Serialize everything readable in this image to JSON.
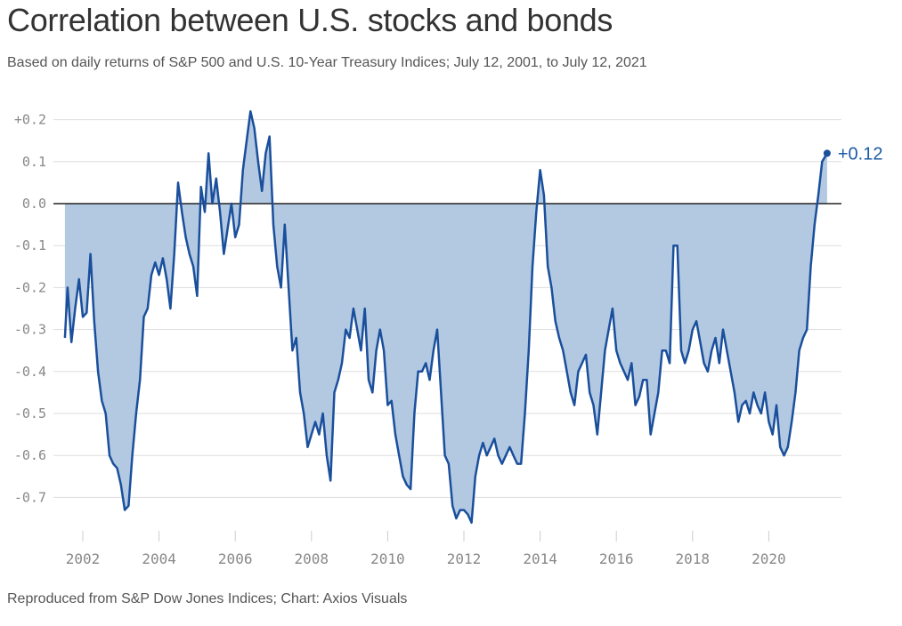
{
  "header": {
    "title": "Correlation between U.S. stocks and bonds",
    "subtitle": "Based on daily returns of S&P 500 and U.S. 10-Year Treasury Indices; July 12, 2001, to July 12, 2021"
  },
  "footer": {
    "source": "Reproduced from S&P Dow Jones Indices; Chart: Axios Visuals"
  },
  "colors": {
    "line": "#1a4f9c",
    "fill": "#b3c9e2",
    "grid": "#dddddd",
    "zero_line": "#222222",
    "label": "#1a5aa6"
  },
  "chart_data": {
    "type": "area",
    "title": "Correlation between U.S. stocks and bonds",
    "subtitle": "Based on daily returns of S&P 500 and U.S. 10-Year Treasury Indices; July 12, 2001, to July 12, 2021",
    "xlabel": "",
    "ylabel": "",
    "xlim": [
      "2001-07-12",
      "2021-07-12"
    ],
    "ylim": [
      -0.78,
      0.25
    ],
    "grid": true,
    "legend": "none",
    "yticks": [
      {
        "value": 0.2,
        "label": "+0.2"
      },
      {
        "value": 0.1,
        "label": "0.1"
      },
      {
        "value": 0.0,
        "label": "0.0"
      },
      {
        "value": -0.1,
        "label": "-0.1"
      },
      {
        "value": -0.2,
        "label": "-0.2"
      },
      {
        "value": -0.3,
        "label": "-0.3"
      },
      {
        "value": -0.4,
        "label": "-0.4"
      },
      {
        "value": -0.5,
        "label": "-0.5"
      },
      {
        "value": -0.6,
        "label": "-0.6"
      },
      {
        "value": -0.7,
        "label": "-0.7"
      }
    ],
    "xticks": [
      {
        "value": 2002,
        "label": "2002"
      },
      {
        "value": 2004,
        "label": "2004"
      },
      {
        "value": 2006,
        "label": "2006"
      },
      {
        "value": 2008,
        "label": "2008"
      },
      {
        "value": 2010,
        "label": "2010"
      },
      {
        "value": 2012,
        "label": "2012"
      },
      {
        "value": 2014,
        "label": "2014"
      },
      {
        "value": 2016,
        "label": "2016"
      },
      {
        "value": 2018,
        "label": "2018"
      },
      {
        "value": 2020,
        "label": "2020"
      }
    ],
    "end_label": "+0.12",
    "end_value": 0.12,
    "x": [
      2001.53,
      2001.6,
      2001.7,
      2001.8,
      2001.9,
      2002.0,
      2002.1,
      2002.2,
      2002.3,
      2002.4,
      2002.5,
      2002.6,
      2002.7,
      2002.8,
      2002.9,
      2003.0,
      2003.1,
      2003.2,
      2003.3,
      2003.4,
      2003.5,
      2003.6,
      2003.7,
      2003.8,
      2003.9,
      2004.0,
      2004.1,
      2004.2,
      2004.3,
      2004.4,
      2004.5,
      2004.6,
      2004.7,
      2004.8,
      2004.9,
      2005.0,
      2005.1,
      2005.2,
      2005.3,
      2005.4,
      2005.5,
      2005.6,
      2005.7,
      2005.8,
      2005.9,
      2006.0,
      2006.1,
      2006.2,
      2006.3,
      2006.4,
      2006.5,
      2006.6,
      2006.7,
      2006.8,
      2006.9,
      2007.0,
      2007.1,
      2007.2,
      2007.3,
      2007.4,
      2007.5,
      2007.6,
      2007.7,
      2007.8,
      2007.9,
      2008.0,
      2008.1,
      2008.2,
      2008.3,
      2008.4,
      2008.5,
      2008.6,
      2008.7,
      2008.8,
      2008.9,
      2009.0,
      2009.1,
      2009.2,
      2009.3,
      2009.4,
      2009.5,
      2009.6,
      2009.7,
      2009.8,
      2009.9,
      2010.0,
      2010.1,
      2010.2,
      2010.3,
      2010.4,
      2010.5,
      2010.6,
      2010.7,
      2010.8,
      2010.9,
      2011.0,
      2011.1,
      2011.2,
      2011.3,
      2011.4,
      2011.5,
      2011.6,
      2011.7,
      2011.8,
      2011.9,
      2012.0,
      2012.1,
      2012.2,
      2012.3,
      2012.4,
      2012.5,
      2012.6,
      2012.7,
      2012.8,
      2012.9,
      2013.0,
      2013.1,
      2013.2,
      2013.3,
      2013.4,
      2013.5,
      2013.6,
      2013.7,
      2013.8,
      2013.9,
      2014.0,
      2014.1,
      2014.2,
      2014.3,
      2014.4,
      2014.5,
      2014.6,
      2014.7,
      2014.8,
      2014.9,
      2015.0,
      2015.1,
      2015.2,
      2015.3,
      2015.4,
      2015.5,
      2015.6,
      2015.7,
      2015.8,
      2015.9,
      2016.0,
      2016.1,
      2016.2,
      2016.3,
      2016.4,
      2016.5,
      2016.6,
      2016.7,
      2016.8,
      2016.9,
      2017.0,
      2017.1,
      2017.2,
      2017.3,
      2017.4,
      2017.5,
      2017.6,
      2017.7,
      2017.8,
      2017.9,
      2018.0,
      2018.1,
      2018.2,
      2018.3,
      2018.4,
      2018.5,
      2018.6,
      2018.7,
      2018.8,
      2018.9,
      2019.0,
      2019.1,
      2019.2,
      2019.3,
      2019.4,
      2019.5,
      2019.6,
      2019.7,
      2019.8,
      2019.9,
      2020.0,
      2020.1,
      2020.2,
      2020.3,
      2020.4,
      2020.5,
      2020.6,
      2020.7,
      2020.8,
      2020.9,
      2021.0,
      2021.1,
      2021.2,
      2021.3,
      2021.4,
      2021.53
    ],
    "values": [
      -0.32,
      -0.2,
      -0.33,
      -0.25,
      -0.18,
      -0.27,
      -0.26,
      -0.12,
      -0.28,
      -0.4,
      -0.47,
      -0.5,
      -0.6,
      -0.62,
      -0.63,
      -0.67,
      -0.73,
      -0.72,
      -0.6,
      -0.5,
      -0.42,
      -0.27,
      -0.25,
      -0.17,
      -0.14,
      -0.17,
      -0.13,
      -0.18,
      -0.25,
      -0.12,
      0.05,
      -0.02,
      -0.08,
      -0.12,
      -0.15,
      -0.22,
      0.04,
      -0.02,
      0.12,
      0.0,
      0.06,
      -0.02,
      -0.12,
      -0.06,
      0.0,
      -0.08,
      -0.05,
      0.08,
      0.15,
      0.22,
      0.18,
      0.1,
      0.03,
      0.12,
      0.16,
      -0.05,
      -0.15,
      -0.2,
      -0.05,
      -0.2,
      -0.35,
      -0.32,
      -0.45,
      -0.5,
      -0.58,
      -0.55,
      -0.52,
      -0.55,
      -0.5,
      -0.6,
      -0.66,
      -0.45,
      -0.42,
      -0.38,
      -0.3,
      -0.32,
      -0.25,
      -0.3,
      -0.35,
      -0.25,
      -0.42,
      -0.45,
      -0.35,
      -0.3,
      -0.35,
      -0.48,
      -0.47,
      -0.55,
      -0.6,
      -0.65,
      -0.67,
      -0.68,
      -0.5,
      -0.4,
      -0.4,
      -0.38,
      -0.42,
      -0.35,
      -0.3,
      -0.45,
      -0.6,
      -0.62,
      -0.72,
      -0.75,
      -0.73,
      -0.73,
      -0.74,
      -0.76,
      -0.65,
      -0.6,
      -0.57,
      -0.6,
      -0.58,
      -0.56,
      -0.6,
      -0.62,
      -0.6,
      -0.58,
      -0.6,
      -0.62,
      -0.62,
      -0.5,
      -0.35,
      -0.15,
      -0.02,
      0.08,
      0.02,
      -0.15,
      -0.2,
      -0.28,
      -0.32,
      -0.35,
      -0.4,
      -0.45,
      -0.48,
      -0.4,
      -0.38,
      -0.36,
      -0.45,
      -0.48,
      -0.55,
      -0.45,
      -0.35,
      -0.3,
      -0.25,
      -0.35,
      -0.38,
      -0.4,
      -0.42,
      -0.38,
      -0.48,
      -0.46,
      -0.42,
      -0.42,
      -0.55,
      -0.5,
      -0.45,
      -0.35,
      -0.35,
      -0.38,
      -0.1,
      -0.1,
      -0.35,
      -0.38,
      -0.35,
      -0.3,
      -0.28,
      -0.33,
      -0.38,
      -0.4,
      -0.35,
      -0.32,
      -0.38,
      -0.3,
      -0.35,
      -0.4,
      -0.45,
      -0.52,
      -0.48,
      -0.47,
      -0.5,
      -0.45,
      -0.48,
      -0.5,
      -0.45,
      -0.52,
      -0.55,
      -0.48,
      -0.58,
      -0.6,
      -0.58,
      -0.52,
      -0.45,
      -0.35,
      -0.32,
      -0.3,
      -0.15,
      -0.05,
      0.02,
      0.1,
      0.12
    ]
  }
}
